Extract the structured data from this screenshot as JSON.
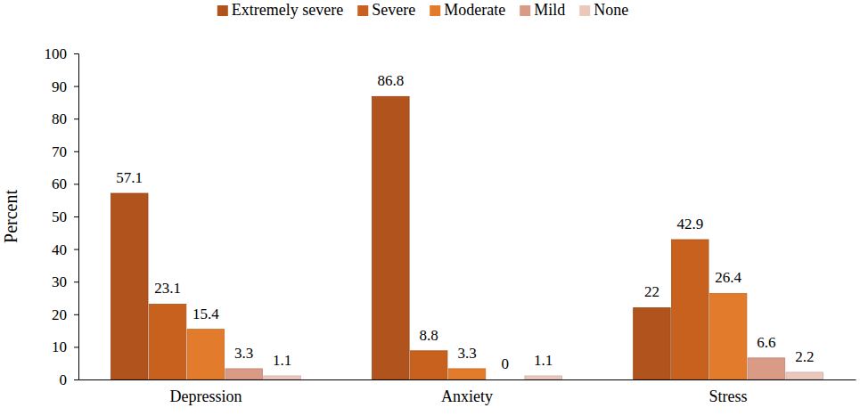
{
  "chart_data": {
    "type": "bar",
    "y_label": "Percent",
    "categories": [
      "Depression",
      "Anxiety",
      "Stress"
    ],
    "series": [
      {
        "name": "Extremely severe",
        "color": "#b0531c",
        "values": [
          57.1,
          86.8,
          22
        ]
      },
      {
        "name": "Severe",
        "color": "#c8611e",
        "values": [
          23.1,
          8.8,
          42.9
        ]
      },
      {
        "name": "Moderate",
        "color": "#e27b2b",
        "values": [
          15.4,
          3.3,
          26.4
        ]
      },
      {
        "name": "Mild",
        "color": "#d99a86",
        "values": [
          3.3,
          0,
          6.6
        ]
      },
      {
        "name": "None",
        "color": "#ecc7bc",
        "values": [
          1.1,
          1.1,
          2.2
        ]
      }
    ],
    "ylim": [
      0,
      100
    ],
    "yticks": [
      0,
      10,
      20,
      30,
      40,
      50,
      60,
      70,
      80,
      90,
      100
    ],
    "grid": false,
    "legend": "top",
    "data_labels": true
  }
}
